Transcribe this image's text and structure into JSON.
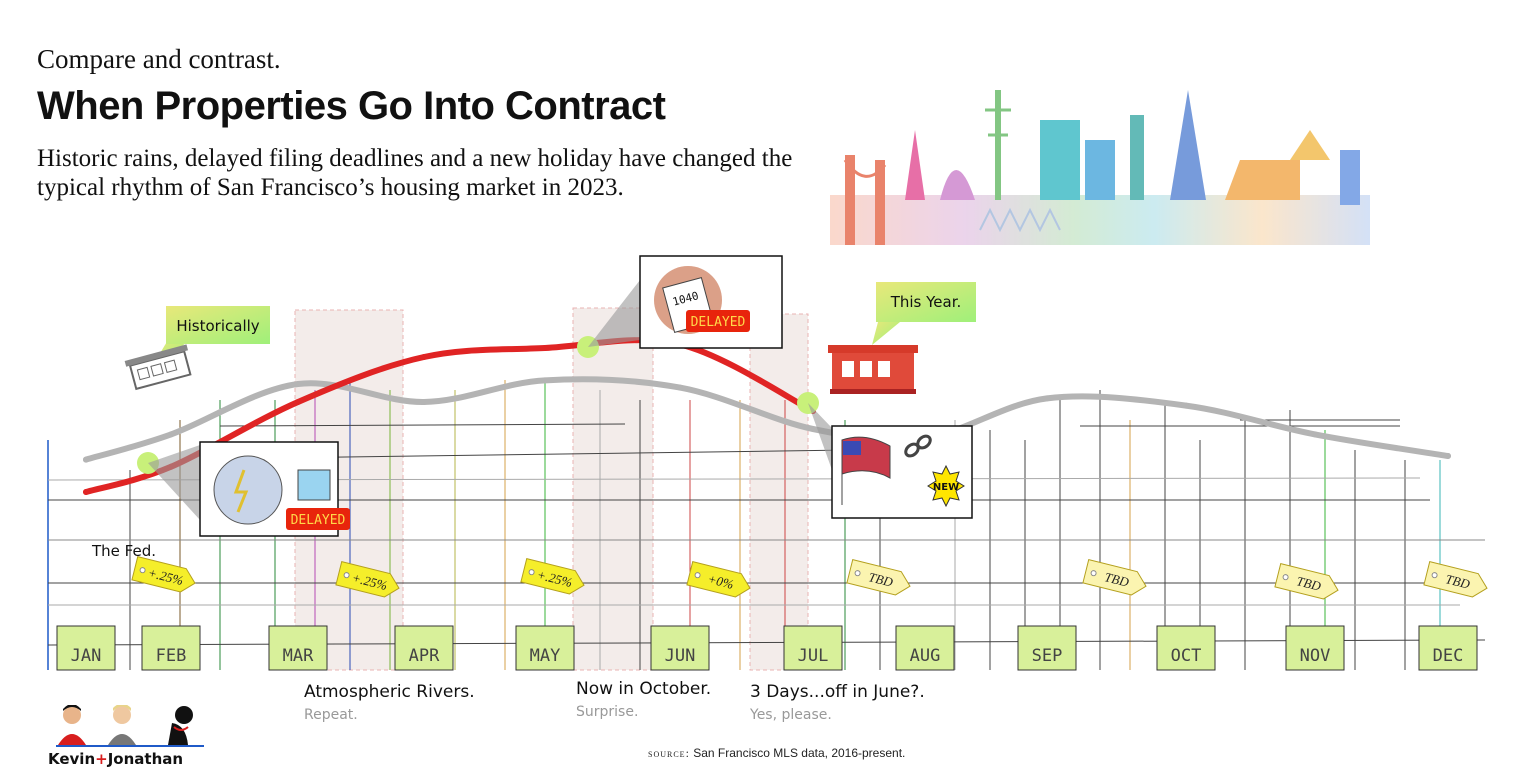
{
  "header": {
    "kicker": "Compare and contrast.",
    "title": "When Properties Go Into Contract",
    "subtitle": "Historic rains, delayed filing deadlines and a new holiday have changed the typical rhythm of San Francisco’s housing market in 2023."
  },
  "chart_data": {
    "type": "line",
    "x": [
      "JAN",
      "FEB",
      "MAR",
      "APR",
      "MAY",
      "JUN",
      "JUL",
      "AUG",
      "SEP",
      "OCT",
      "NOV",
      "DEC"
    ],
    "series": [
      {
        "key": "historical",
        "values": [
          0.28,
          0.42,
          0.7,
          0.6,
          0.72,
          0.68,
          0.45,
          0.4,
          0.62,
          0.58,
          0.42,
          0.3
        ]
      },
      {
        "key": "this_year",
        "values": [
          0.1,
          0.24,
          0.6,
          0.85,
          0.9,
          0.92,
          0.55,
          null,
          null,
          null,
          null,
          null
        ]
      }
    ],
    "colors": {
      "historical": "#b4b4b4",
      "this_year": "#e02424"
    },
    "callouts": {
      "historical": "Historically",
      "this_year": "This Year.",
      "delayed_1": "DELAYED",
      "delayed_2": "DELAYED",
      "tax_form": "1040",
      "new_badge": "NEW"
    },
    "fed": {
      "label": "The Fed.",
      "tags": [
        "+.25%",
        "+.25%",
        "+.25%",
        "+0%",
        "TBD",
        "TBD",
        "TBD",
        "TBD"
      ]
    },
    "annotations": [
      {
        "main": "Atmospheric Rivers.",
        "soft": "Repeat."
      },
      {
        "main": "Now in October.",
        "soft": "Surprise."
      },
      {
        "main": "3 Days...off in June?.",
        "soft": "Yes, please."
      }
    ]
  },
  "footer": {
    "source_label": "source:",
    "source_text": "San Francisco MLS data, 2016-present.",
    "brand_a": "Kevin",
    "brand_plus": "+",
    "brand_b": "Jonathan"
  }
}
